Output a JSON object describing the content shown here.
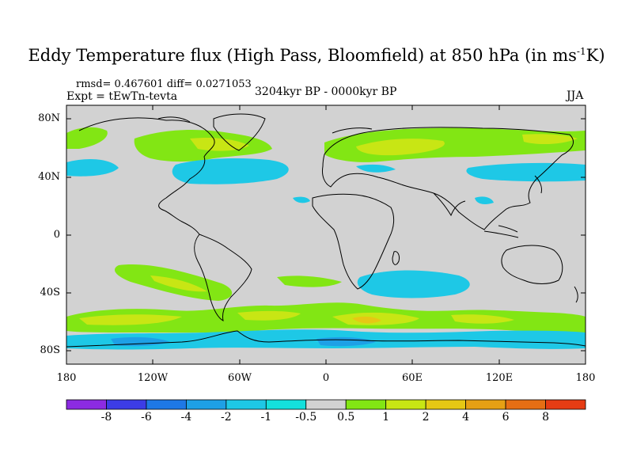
{
  "title_main": "Eddy Temperature flux (High Pass, Bloomfield) at 850 hPa (in ms",
  "title_sup": "-1",
  "title_end": "K)",
  "stats": "rmsd= 0.467601 diff= 0.0271053",
  "experiment": "Expt = tEwTn-tevta",
  "period": "3204kyr BP - 0000kyr BP",
  "season": "JJA",
  "lat_labels": [
    "80N",
    "40N",
    "0",
    "40S",
    "80S"
  ],
  "lon_labels": [
    "180",
    "120W",
    "60W",
    "0",
    "60E",
    "120E",
    "180"
  ],
  "colorbar": {
    "labels": [
      "-8",
      "-6",
      "-4",
      "-2",
      "-1",
      "-0.5",
      "0.5",
      "1",
      "2",
      "4",
      "6",
      "8"
    ],
    "colors": [
      "#8c2be2",
      "#3c3ce6",
      "#1e78e6",
      "#1ea0e6",
      "#1ec8e6",
      "#14e0dc",
      "#d2d2d2",
      "#82e614",
      "#c8e614",
      "#e6c814",
      "#e6a014",
      "#e66e14",
      "#e63c14"
    ]
  },
  "map_colors": {
    "background": "#d2d2d2",
    "coast": "#000000"
  }
}
